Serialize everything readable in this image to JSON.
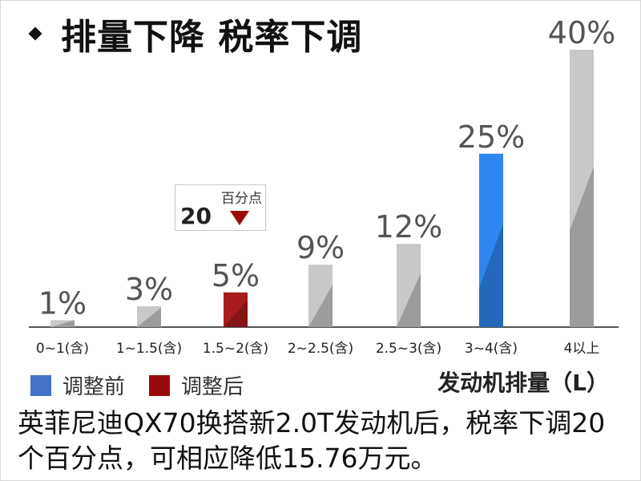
{
  "title": "排量下降 税率下调",
  "chart_data": {
    "type": "bar",
    "categories": [
      "0~1(含)",
      "1~1.5(含)",
      "1.5~2(含)",
      "2~2.5(含)",
      "2.5~3(含)",
      "3~4(含)",
      "4以上"
    ],
    "values": [
      1,
      3,
      5,
      9,
      12,
      25,
      40
    ],
    "labels": [
      "1%",
      "3%",
      "5%",
      "9%",
      "12%",
      "25%",
      "40%"
    ],
    "xlabel": "发动机排量（L）",
    "ylabel": "",
    "ylim": [
      0,
      40
    ],
    "legend": [
      {
        "name": "调整前",
        "color": "#4472C4"
      },
      {
        "name": "调整后",
        "color": "#9B0A0A"
      }
    ],
    "highlight": {
      "adjusted_before_index": 5,
      "adjusted_after_index": 2,
      "before_color": "#2E86F0",
      "after_color": "#A81B1B",
      "default_color": "#C8C8C8"
    },
    "annotation": {
      "value": "20",
      "unit": "百分点",
      "direction": "down"
    }
  },
  "caption": "英菲尼迪QX70换搭新2.0T发动机后，税率下调20个百分点，可相应降低15.76万元。"
}
